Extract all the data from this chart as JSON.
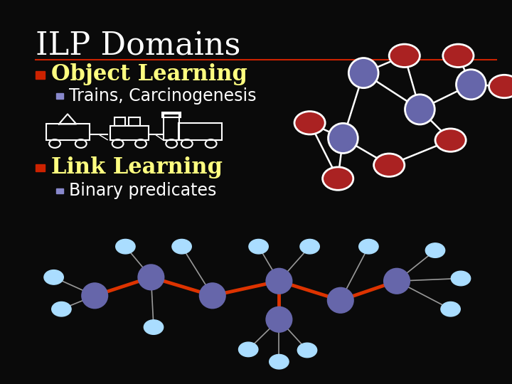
{
  "background_color": "#0a0a0a",
  "title": "ILP Domains",
  "title_color": "#ffffff",
  "title_fontsize": 32,
  "title_font": "serif",
  "separator_color": "#cc2200",
  "bullet1_text": "Object Learning",
  "bullet1_color": "#ffff80",
  "bullet1_fontsize": 22,
  "bullet1_marker_color": "#cc2200",
  "sub_bullet1_text": "Trains, Carcinogenesis",
  "sub_bullet1_color": "#ffffff",
  "sub_bullet1_fontsize": 17,
  "sub_bullet1_marker_color": "#8888cc",
  "bullet2_text": "Link Learning",
  "bullet2_color": "#ffff80",
  "bullet2_fontsize": 22,
  "bullet2_marker_color": "#cc2200",
  "sub_bullet2_text": "Binary predicates",
  "sub_bullet2_color": "#ffffff",
  "sub_bullet2_fontsize": 17,
  "sub_bullet2_marker_color": "#8888cc",
  "node_large_color": "#6666aa",
  "node_small_color": "#aa2222",
  "node_edge_color": "#ffffff",
  "link_small_color": "#aaddff",
  "red_link_color": "#dd3300",
  "train_color": "#ffffff"
}
